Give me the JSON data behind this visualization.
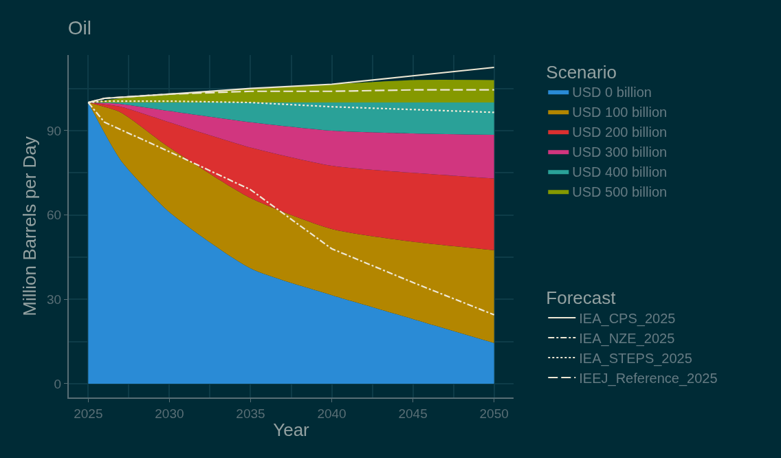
{
  "chart_data": {
    "type": "area",
    "title": "Oil",
    "xlabel": "Year",
    "ylabel": "Million Barrels per Day",
    "legend_title": "Scenario",
    "annotations": [
      "Forecast"
    ],
    "stacked": true,
    "grid": true,
    "legend": "right",
    "marker": "none",
    "x": [
      2025,
      2027,
      2030,
      2035,
      2040,
      2045,
      2050
    ],
    "xlim": [
      2023.8,
      2051.2
    ],
    "xticks": [
      2025,
      2030,
      2035,
      2040,
      2045,
      2050
    ],
    "ylim": [
      -4.9,
      116.9
    ],
    "yticks": [
      0,
      30,
      60,
      90
    ],
    "series": [
      {
        "name": "USD 0 billion",
        "color": "#2a8bd6",
        "values": [
          100,
          79.5,
          61,
          41,
          31.5,
          23,
          14.5
        ]
      },
      {
        "name": "USD 100 billion",
        "color": "#b38600",
        "values": [
          0,
          17,
          23,
          25,
          23.5,
          27.5,
          33
        ]
      },
      {
        "name": "USD 200 billion",
        "color": "#dc3030",
        "values": [
          0,
          2,
          9,
          18,
          22.5,
          24.5,
          25.5
        ]
      },
      {
        "name": "USD 300 billion",
        "color": "#d1367f",
        "values": [
          0,
          1,
          4,
          9,
          12.5,
          14,
          15.5
        ]
      },
      {
        "name": "USD 400 billion",
        "color": "#2aa198",
        "values": [
          0,
          0.5,
          3,
          7,
          10,
          11,
          11.5
        ]
      },
      {
        "name": "USD 500 billion",
        "color": "#859900",
        "values": [
          0,
          1.5,
          3,
          5,
          6.5,
          8,
          8
        ]
      },
      {
        "name": "IEA_CPS_2025",
        "type": "line",
        "line_style": "solid",
        "color": "#eee8d5",
        "x": [
          2025,
          2026,
          2030,
          2035,
          2040,
          2045,
          2050
        ],
        "values": [
          100,
          101.5,
          103,
          105,
          106.5,
          109.5,
          112.5
        ]
      },
      {
        "name": "IEA_NZE_2025",
        "type": "line",
        "line_style": "dashdot",
        "color": "#eee8d5",
        "x": [
          2025,
          2026,
          2030,
          2035,
          2040,
          2045,
          2050
        ],
        "values": [
          100,
          93,
          82.5,
          69,
          48,
          36,
          24.5
        ]
      },
      {
        "name": "IEA_STEPS_2025",
        "type": "line",
        "line_style": "dotted",
        "color": "#eee8d5",
        "x": [
          2025,
          2026,
          2030,
          2035,
          2040,
          2045,
          2050
        ],
        "values": [
          100,
          100.5,
          100.5,
          100,
          98.5,
          97.5,
          96.5
        ]
      },
      {
        "name": "IEEJ_Reference_2025",
        "type": "line",
        "line_style": "dashed",
        "color": "#eee8d5",
        "x": [
          2025,
          2026,
          2030,
          2035,
          2040,
          2045,
          2050
        ],
        "values": [
          100,
          101.5,
          103,
          104,
          104,
          104.5,
          104.5
        ]
      }
    ]
  }
}
